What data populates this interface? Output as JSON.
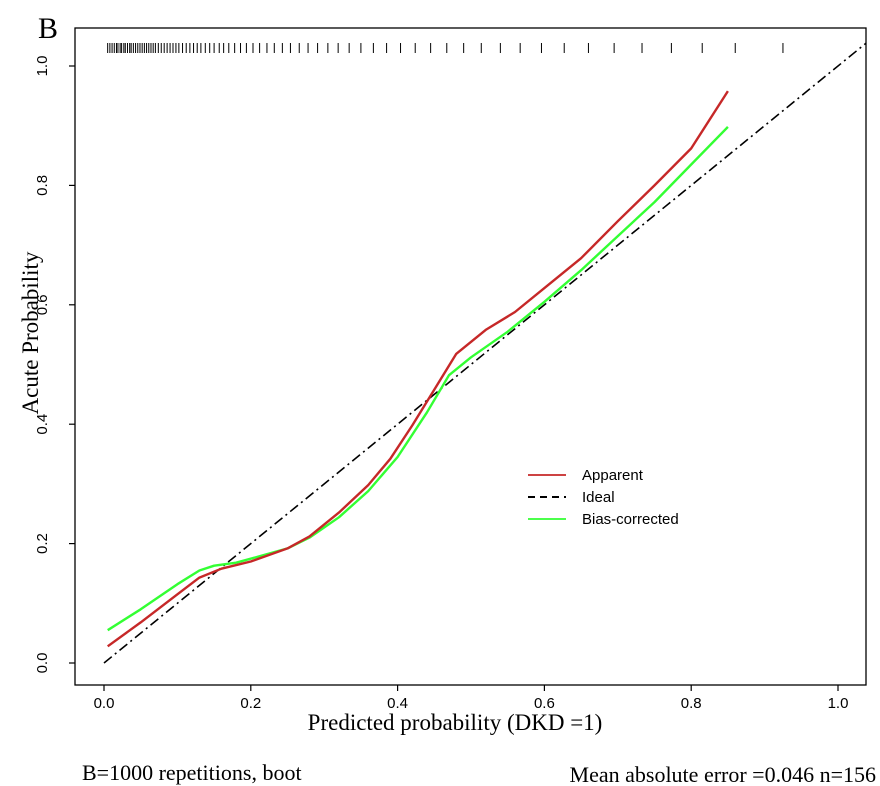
{
  "panel_label": "B",
  "chart_data": {
    "type": "line",
    "xlabel": "Predicted probability (DKD =1)",
    "ylabel": "Acute Probability",
    "xlim": [
      0.0,
      1.0
    ],
    "ylim": [
      0.0,
      1.0
    ],
    "x_ticks": [
      "0.0",
      "0.2",
      "0.4",
      "0.6",
      "0.8",
      "1.0"
    ],
    "y_ticks": [
      "0.0",
      "0.2",
      "0.4",
      "0.6",
      "0.8",
      "1.0"
    ],
    "grid": false,
    "legend_position": "center-right",
    "series": [
      {
        "name": "Apparent",
        "color": "#c62828",
        "style": "solid",
        "points": [
          [
            0.005,
            0.028
          ],
          [
            0.05,
            0.068
          ],
          [
            0.1,
            0.115
          ],
          [
            0.13,
            0.143
          ],
          [
            0.16,
            0.158
          ],
          [
            0.2,
            0.17
          ],
          [
            0.25,
            0.192
          ],
          [
            0.28,
            0.212
          ],
          [
            0.32,
            0.252
          ],
          [
            0.36,
            0.298
          ],
          [
            0.39,
            0.342
          ],
          [
            0.42,
            0.398
          ],
          [
            0.45,
            0.458
          ],
          [
            0.48,
            0.518
          ],
          [
            0.52,
            0.558
          ],
          [
            0.56,
            0.588
          ],
          [
            0.6,
            0.628
          ],
          [
            0.65,
            0.678
          ],
          [
            0.7,
            0.74
          ],
          [
            0.75,
            0.8
          ],
          [
            0.8,
            0.862
          ],
          [
            0.85,
            0.958
          ]
        ]
      },
      {
        "name": "Ideal",
        "color": "#000000",
        "style": "dashdot",
        "points": [
          [
            0.0,
            0.0
          ],
          [
            1.0,
            1.0
          ]
        ]
      },
      {
        "name": "Bias-corrected",
        "color": "#33ff33",
        "style": "solid",
        "points": [
          [
            0.005,
            0.055
          ],
          [
            0.05,
            0.09
          ],
          [
            0.1,
            0.132
          ],
          [
            0.13,
            0.155
          ],
          [
            0.15,
            0.163
          ],
          [
            0.18,
            0.168
          ],
          [
            0.21,
            0.178
          ],
          [
            0.25,
            0.192
          ],
          [
            0.28,
            0.21
          ],
          [
            0.32,
            0.244
          ],
          [
            0.36,
            0.288
          ],
          [
            0.4,
            0.345
          ],
          [
            0.44,
            0.42
          ],
          [
            0.47,
            0.482
          ],
          [
            0.5,
            0.512
          ],
          [
            0.55,
            0.555
          ],
          [
            0.6,
            0.605
          ],
          [
            0.65,
            0.658
          ],
          [
            0.7,
            0.715
          ],
          [
            0.75,
            0.772
          ],
          [
            0.8,
            0.835
          ],
          [
            0.85,
            0.898
          ]
        ]
      }
    ],
    "rug_x": [
      0.005,
      0.008,
      0.011,
      0.014,
      0.017,
      0.019,
      0.022,
      0.024,
      0.027,
      0.029,
      0.032,
      0.035,
      0.037,
      0.04,
      0.043,
      0.046,
      0.049,
      0.052,
      0.055,
      0.058,
      0.061,
      0.064,
      0.067,
      0.07,
      0.074,
      0.078,
      0.082,
      0.086,
      0.09,
      0.094,
      0.098,
      0.102,
      0.107,
      0.112,
      0.117,
      0.122,
      0.127,
      0.132,
      0.138,
      0.144,
      0.15,
      0.157,
      0.163,
      0.17,
      0.178,
      0.186,
      0.194,
      0.203,
      0.212,
      0.222,
      0.232,
      0.243,
      0.254,
      0.266,
      0.278,
      0.291,
      0.305,
      0.319,
      0.334,
      0.35,
      0.367,
      0.385,
      0.404,
      0.424,
      0.445,
      0.467,
      0.49,
      0.514,
      0.54,
      0.567,
      0.596,
      0.627,
      0.66,
      0.695,
      0.733,
      0.773,
      0.815,
      0.86,
      0.925
    ]
  },
  "footer": {
    "left_note": "B=1000 repetitions, boot",
    "right_note": "Mean absolute error =0.046 n=156"
  }
}
